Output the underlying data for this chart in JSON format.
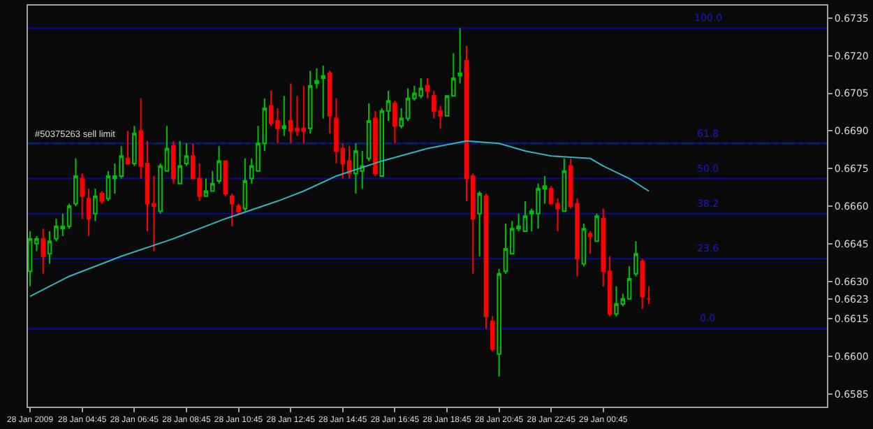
{
  "chart_data": {
    "type": "candlestick",
    "x": [
      "2009-01-28T02:45",
      "2009-01-28T03:00",
      "2009-01-28T03:15",
      "2009-01-28T03:30",
      "2009-01-28T03:45",
      "2009-01-28T04:00",
      "2009-01-28T04:15",
      "2009-01-28T04:30",
      "2009-01-28T04:45",
      "2009-01-28T05:00",
      "2009-01-28T05:15",
      "2009-01-28T05:30",
      "2009-01-28T05:45",
      "2009-01-28T06:00",
      "2009-01-28T06:15",
      "2009-01-28T06:30",
      "2009-01-28T06:45",
      "2009-01-28T07:00",
      "2009-01-28T07:15",
      "2009-01-28T07:30",
      "2009-01-28T07:45",
      "2009-01-28T08:00",
      "2009-01-28T08:15",
      "2009-01-28T08:30",
      "2009-01-28T08:45",
      "2009-01-28T09:00",
      "2009-01-28T09:15",
      "2009-01-28T09:30",
      "2009-01-28T09:45",
      "2009-01-28T10:00",
      "2009-01-28T10:15",
      "2009-01-28T10:30",
      "2009-01-28T10:45",
      "2009-01-28T11:00",
      "2009-01-28T11:15",
      "2009-01-28T11:30",
      "2009-01-28T11:45",
      "2009-01-28T12:00",
      "2009-01-28T12:15",
      "2009-01-28T12:30",
      "2009-01-28T12:45",
      "2009-01-28T13:00",
      "2009-01-28T13:15",
      "2009-01-28T13:30",
      "2009-01-28T13:45",
      "2009-01-28T14:00",
      "2009-01-28T14:15",
      "2009-01-28T14:30",
      "2009-01-28T14:45",
      "2009-01-28T15:00",
      "2009-01-28T15:15",
      "2009-01-28T15:30",
      "2009-01-28T15:45",
      "2009-01-28T16:00",
      "2009-01-28T16:15",
      "2009-01-28T16:30",
      "2009-01-28T16:45",
      "2009-01-28T17:00",
      "2009-01-28T17:15",
      "2009-01-28T17:30",
      "2009-01-28T17:45",
      "2009-01-28T18:00",
      "2009-01-28T18:15",
      "2009-01-28T18:30",
      "2009-01-28T18:45",
      "2009-01-28T19:00",
      "2009-01-28T19:15",
      "2009-01-28T19:30",
      "2009-01-28T19:45",
      "2009-01-28T20:00",
      "2009-01-28T20:15",
      "2009-01-28T20:30",
      "2009-01-28T20:45",
      "2009-01-28T21:00",
      "2009-01-28T21:15",
      "2009-01-28T21:30",
      "2009-01-28T21:45",
      "2009-01-28T22:00",
      "2009-01-28T22:15",
      "2009-01-28T22:30",
      "2009-01-28T22:45",
      "2009-01-28T23:00",
      "2009-01-28T23:15",
      "2009-01-28T23:30",
      "2009-01-28T23:45",
      "2009-01-29T00:00",
      "2009-01-29T00:15",
      "2009-01-29T00:30",
      "2009-01-29T00:45",
      "2009-01-29T01:00",
      "2009-01-29T01:15",
      "2009-01-29T01:30",
      "2009-01-29T01:45",
      "2009-01-29T02:00",
      "2009-01-29T02:15",
      "2009-01-29T02:30"
    ],
    "ohlc": [
      [
        0.6634,
        0.665,
        0.6628,
        0.6647
      ],
      [
        0.6645,
        0.6648,
        0.6642,
        0.6647
      ],
      [
        0.6647,
        0.6651,
        0.6633,
        0.664
      ],
      [
        0.6641,
        0.665,
        0.6637,
        0.6646
      ],
      [
        0.6647,
        0.6655,
        0.6646,
        0.6652
      ],
      [
        0.6651,
        0.6657,
        0.6648,
        0.6652
      ],
      [
        0.6652,
        0.6661,
        0.6651,
        0.666
      ],
      [
        0.6661,
        0.6679,
        0.666,
        0.6672
      ],
      [
        0.6671,
        0.6673,
        0.6655,
        0.6664
      ],
      [
        0.6663,
        0.6667,
        0.6648,
        0.6655
      ],
      [
        0.6657,
        0.6667,
        0.6654,
        0.6664
      ],
      [
        0.6665,
        0.6666,
        0.6661,
        0.6662
      ],
      [
        0.6663,
        0.6674,
        0.6662,
        0.6672
      ],
      [
        0.6671,
        0.6677,
        0.6665,
        0.6672
      ],
      [
        0.6672,
        0.6684,
        0.6671,
        0.668
      ],
      [
        0.6679,
        0.669,
        0.6677,
        0.6677
      ],
      [
        0.6677,
        0.6692,
        0.6676,
        0.6689
      ],
      [
        0.669,
        0.6703,
        0.6671,
        0.6676
      ],
      [
        0.6677,
        0.6686,
        0.665,
        0.6661
      ],
      [
        0.6661,
        0.6672,
        0.6642,
        0.666
      ],
      [
        0.6658,
        0.6677,
        0.6657,
        0.6676
      ],
      [
        0.6674,
        0.6692,
        0.6674,
        0.6683
      ],
      [
        0.6684,
        0.6686,
        0.6669,
        0.6671
      ],
      [
        0.6669,
        0.6686,
        0.6669,
        0.6676
      ],
      [
        0.6677,
        0.6685,
        0.6676,
        0.668
      ],
      [
        0.668,
        0.6685,
        0.6671,
        0.6671
      ],
      [
        0.6671,
        0.6677,
        0.6662,
        0.6664
      ],
      [
        0.6664,
        0.6671,
        0.6664,
        0.6666
      ],
      [
        0.6666,
        0.6674,
        0.6666,
        0.6669
      ],
      [
        0.667,
        0.6684,
        0.6669,
        0.6678
      ],
      [
        0.6678,
        0.6678,
        0.6664,
        0.6665
      ],
      [
        0.6664,
        0.6665,
        0.6652,
        0.6661
      ],
      [
        0.666,
        0.6661,
        0.6657,
        0.6658
      ],
      [
        0.6659,
        0.6679,
        0.6658,
        0.667
      ],
      [
        0.6671,
        0.6679,
        0.6669,
        0.6676
      ],
      [
        0.6674,
        0.6692,
        0.6674,
        0.6685
      ],
      [
        0.6685,
        0.6703,
        0.6682,
        0.6699
      ],
      [
        0.67,
        0.6706,
        0.6692,
        0.6693
      ],
      [
        0.6694,
        0.6699,
        0.6685,
        0.6691
      ],
      [
        0.6691,
        0.6704,
        0.6688,
        0.6692
      ],
      [
        0.6694,
        0.6709,
        0.6685,
        0.669
      ],
      [
        0.6691,
        0.6704,
        0.6688,
        0.669
      ],
      [
        0.6691,
        0.6708,
        0.6685,
        0.669
      ],
      [
        0.6691,
        0.6714,
        0.6689,
        0.6708
      ],
      [
        0.6709,
        0.6715,
        0.6707,
        0.671
      ],
      [
        0.6711,
        0.6716,
        0.6695,
        0.6712
      ],
      [
        0.6713,
        0.6714,
        0.6689,
        0.6696
      ],
      [
        0.6695,
        0.6703,
        0.6677,
        0.6682
      ],
      [
        0.6683,
        0.6685,
        0.6671,
        0.6677
      ],
      [
        0.6678,
        0.6684,
        0.6671,
        0.6673
      ],
      [
        0.6673,
        0.6685,
        0.6665,
        0.6682
      ],
      [
        0.6674,
        0.6682,
        0.6667,
        0.6676
      ],
      [
        0.6679,
        0.6701,
        0.6678,
        0.6694
      ],
      [
        0.6695,
        0.6698,
        0.6672,
        0.6673
      ],
      [
        0.6672,
        0.6699,
        0.6672,
        0.6698
      ],
      [
        0.6698,
        0.6706,
        0.6694,
        0.6702
      ],
      [
        0.6701,
        0.6702,
        0.6685,
        0.6692
      ],
      [
        0.6692,
        0.6699,
        0.6691,
        0.6695
      ],
      [
        0.6695,
        0.6707,
        0.6694,
        0.6703
      ],
      [
        0.6703,
        0.6708,
        0.6702,
        0.6705
      ],
      [
        0.6704,
        0.6711,
        0.6703,
        0.6707
      ],
      [
        0.6708,
        0.6711,
        0.6703,
        0.6706
      ],
      [
        0.6704,
        0.6706,
        0.6695,
        0.6698
      ],
      [
        0.6698,
        0.67,
        0.6691,
        0.6696
      ],
      [
        0.6696,
        0.6704,
        0.6696,
        0.6704
      ],
      [
        0.6704,
        0.6721,
        0.6704,
        0.6711
      ],
      [
        0.6712,
        0.6731,
        0.6709,
        0.6713
      ],
      [
        0.6718,
        0.6724,
        0.6662,
        0.6671
      ],
      [
        0.6672,
        0.6673,
        0.6633,
        0.6655
      ],
      [
        0.6657,
        0.6666,
        0.664,
        0.6665
      ],
      [
        0.6664,
        0.6665,
        0.6611,
        0.6616
      ],
      [
        0.6614,
        0.6616,
        0.6602,
        0.6603
      ],
      [
        0.6601,
        0.6635,
        0.6592,
        0.6633
      ],
      [
        0.6634,
        0.6653,
        0.6633,
        0.6643
      ],
      [
        0.6641,
        0.6654,
        0.6641,
        0.6651
      ],
      [
        0.6651,
        0.6657,
        0.665,
        0.6652
      ],
      [
        0.665,
        0.6662,
        0.665,
        0.6656
      ],
      [
        0.6657,
        0.6659,
        0.665,
        0.6658
      ],
      [
        0.6657,
        0.6669,
        0.6651,
        0.6667
      ],
      [
        0.6667,
        0.6672,
        0.6661,
        0.6668
      ],
      [
        0.6667,
        0.6668,
        0.6661,
        0.6661
      ],
      [
        0.6661,
        0.6663,
        0.665,
        0.6659
      ],
      [
        0.6658,
        0.6679,
        0.6658,
        0.6674
      ],
      [
        0.6676,
        0.6679,
        0.6659,
        0.666
      ],
      [
        0.6661,
        0.6663,
        0.6632,
        0.6639
      ],
      [
        0.6637,
        0.6653,
        0.6636,
        0.6651
      ],
      [
        0.6649,
        0.665,
        0.6641,
        0.6648
      ],
      [
        0.6646,
        0.6657,
        0.6646,
        0.6656
      ],
      [
        0.6655,
        0.6659,
        0.6628,
        0.6634
      ],
      [
        0.6634,
        0.664,
        0.6616,
        0.6617
      ],
      [
        0.6617,
        0.6628,
        0.6616,
        0.6621
      ],
      [
        0.6621,
        0.6625,
        0.662,
        0.6623
      ],
      [
        0.6623,
        0.6636,
        0.6623,
        0.6631
      ],
      [
        0.6633,
        0.6646,
        0.6632,
        0.6641
      ],
      [
        0.6638,
        0.6639,
        0.6619,
        0.6624
      ],
      [
        0.6623,
        0.6628,
        0.6621,
        0.6623
      ]
    ],
    "series": [
      {
        "type": "line",
        "color": "#2fb4bd",
        "x": [
          "2009-01-28T02:45",
          "2009-01-28T04:15",
          "2009-01-28T06:15",
          "2009-01-28T08:15",
          "2009-01-28T10:15",
          "2009-01-28T12:15",
          "2009-01-28T13:15",
          "2009-01-28T14:30",
          "2009-01-28T16:15",
          "2009-01-28T18:00",
          "2009-01-28T19:30",
          "2009-01-28T20:45",
          "2009-01-28T21:45",
          "2009-01-28T22:45",
          "2009-01-29T00:15",
          "2009-01-29T00:45",
          "2009-01-29T01:45",
          "2009-01-29T02:30"
        ],
        "values": [
          0.6624,
          0.6632,
          0.664,
          0.6647,
          0.6655,
          0.6662,
          0.6666,
          0.6672,
          0.6678,
          0.6683,
          0.6686,
          0.6685,
          0.6682,
          0.668,
          0.6679,
          0.6676,
          0.6671,
          0.6666
        ]
      }
    ],
    "ref_lines": [
      {
        "axis": "y",
        "value": 0.6685,
        "label": "#50375263 sell limit",
        "color": "#1f8f1f",
        "line_style": "dashed"
      },
      {
        "axis": "y",
        "value": 0.6731,
        "color": "#0a0a9a"
      },
      {
        "axis": "y",
        "value": 0.6685,
        "color": "#0a0a9a"
      },
      {
        "axis": "y",
        "value": 0.6671,
        "color": "#0a0a9a"
      },
      {
        "axis": "y",
        "value": 0.6657,
        "color": "#0a0a9a"
      },
      {
        "axis": "y",
        "value": 0.6639,
        "color": "#0a0a9a"
      },
      {
        "axis": "y",
        "value": 0.6611,
        "color": "#0a0a9a"
      }
    ],
    "annotations": [
      {
        "text": "100.0",
        "x": "2009-01-29T04:45",
        "y": 0.6731
      },
      {
        "text": "61.8",
        "x": "2009-01-29T04:45",
        "y": 0.6685
      },
      {
        "text": "50.0",
        "x": "2009-01-29T04:45",
        "y": 0.6671
      },
      {
        "text": "38.2",
        "x": "2009-01-29T04:45",
        "y": 0.6657
      },
      {
        "text": "23.6",
        "x": "2009-01-29T04:45",
        "y": 0.6639
      },
      {
        "text": "0.0",
        "x": "2009-01-29T04:45",
        "y": 0.6611
      }
    ],
    "xlim": [
      "2009-01-28T02:40",
      "2009-01-29T09:20"
    ],
    "xticks": [
      {
        "value": "2009-01-28T02:45",
        "label": "28 Jan 2009"
      },
      {
        "value": "2009-01-28T04:45",
        "label": "28 Jan 04:45"
      },
      {
        "value": "2009-01-28T06:45",
        "label": "28 Jan 06:45"
      },
      {
        "value": "2009-01-28T08:45",
        "label": "28 Jan 08:45"
      },
      {
        "value": "2009-01-28T10:45",
        "label": "28 Jan 10:45"
      },
      {
        "value": "2009-01-28T12:45",
        "label": "28 Jan 12:45"
      },
      {
        "value": "2009-01-28T14:45",
        "label": "28 Jan 14:45"
      },
      {
        "value": "2009-01-28T16:45",
        "label": "28 Jan 16:45"
      },
      {
        "value": "2009-01-28T18:45",
        "label": "28 Jan 18:45"
      },
      {
        "value": "2009-01-28T20:45",
        "label": "28 Jan 20:45"
      },
      {
        "value": "2009-01-28T22:45",
        "label": "28 Jan 22:45"
      },
      {
        "value": "2009-01-29T00:45",
        "label": "29 Jan 00:45"
      }
    ],
    "ylim": [
      0.658,
      0.674
    ],
    "yticks": [
      {
        "value": 0.6585,
        "label": "0.6585"
      },
      {
        "value": 0.66,
        "label": "0.6600"
      },
      {
        "value": 0.6615,
        "label": "0.6615"
      },
      {
        "value": 0.6623,
        "label": "0.6623"
      },
      {
        "value": 0.663,
        "label": "0.6630"
      },
      {
        "value": 0.6645,
        "label": "0.6645"
      },
      {
        "value": 0.666,
        "label": "0.6660"
      },
      {
        "value": 0.6675,
        "label": "0.6675"
      },
      {
        "value": 0.669,
        "label": "0.6690"
      },
      {
        "value": 0.6705,
        "label": "0.6705"
      },
      {
        "value": 0.672,
        "label": "0.6720"
      },
      {
        "value": 0.6735,
        "label": "0.6735"
      }
    ],
    "grid": false
  }
}
